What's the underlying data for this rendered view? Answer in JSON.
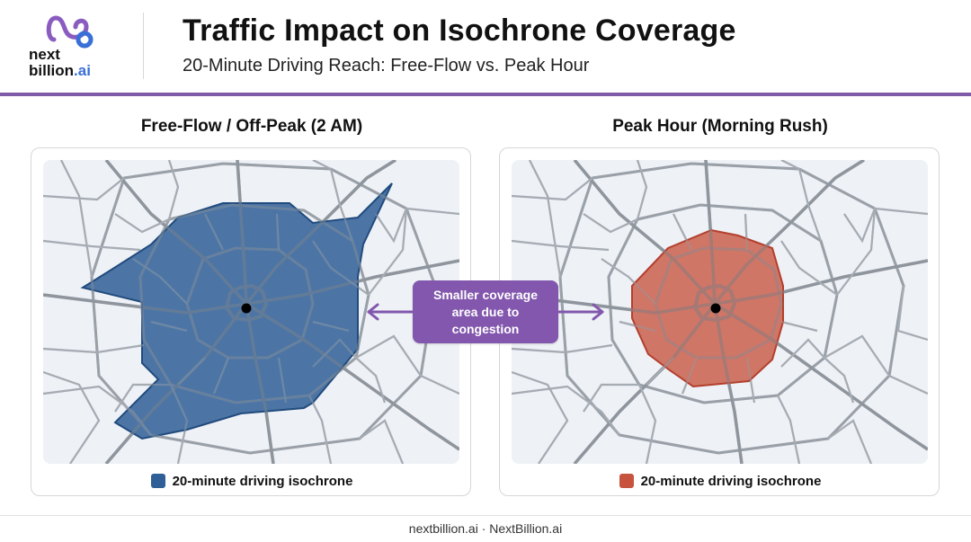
{
  "header": {
    "logo_line1": "next",
    "logo_line2": "billion",
    "logo_line2_suffix": ".ai",
    "title": "Traffic Impact on Isochrone Coverage",
    "subtitle": "20-Minute Driving Reach: Free-Flow vs. Peak Hour"
  },
  "panels": {
    "left": {
      "title": "Free-Flow / Off-Peak (2 AM)",
      "legend": "20-minute driving isochrone",
      "color": "#2f5f96"
    },
    "right": {
      "title": "Peak Hour (Morning Rush)",
      "legend": "20-minute driving isochrone",
      "color": "#c7533f"
    }
  },
  "callout": {
    "line1": "Smaller coverage",
    "line2": "area due to",
    "line3": "congestion"
  },
  "colors": {
    "accent": "#7f5aa6",
    "map_background": "#eef1f6",
    "road": "#9aa0a8"
  },
  "footer": {
    "text": "nextbillion.ai · NextBillion.ai"
  }
}
